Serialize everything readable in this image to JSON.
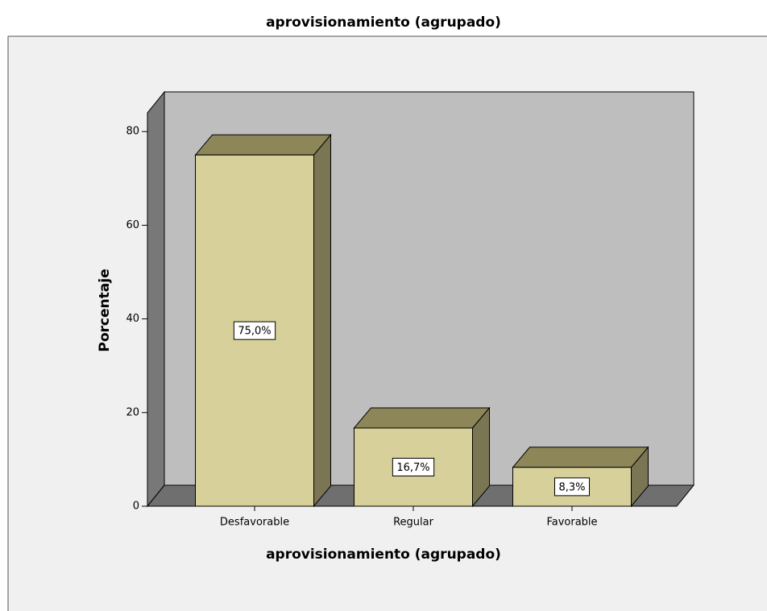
{
  "chart_data": {
    "type": "bar3d",
    "title": "aprovisionamiento (agrupado)",
    "x_label": "aprovisionamiento (agrupado)",
    "y_label": "Porcentaje",
    "categories": [
      "Desfavorable",
      "Regular",
      "Favorable"
    ],
    "values": [
      75.0,
      16.7,
      8.3
    ],
    "value_labels": [
      "75,0%",
      "16,7%",
      "8,3%"
    ],
    "color": "#d7d09a",
    "ylim": [
      0,
      84
    ],
    "yticks": [
      0,
      20,
      40,
      60,
      80
    ],
    "grid": false
  }
}
